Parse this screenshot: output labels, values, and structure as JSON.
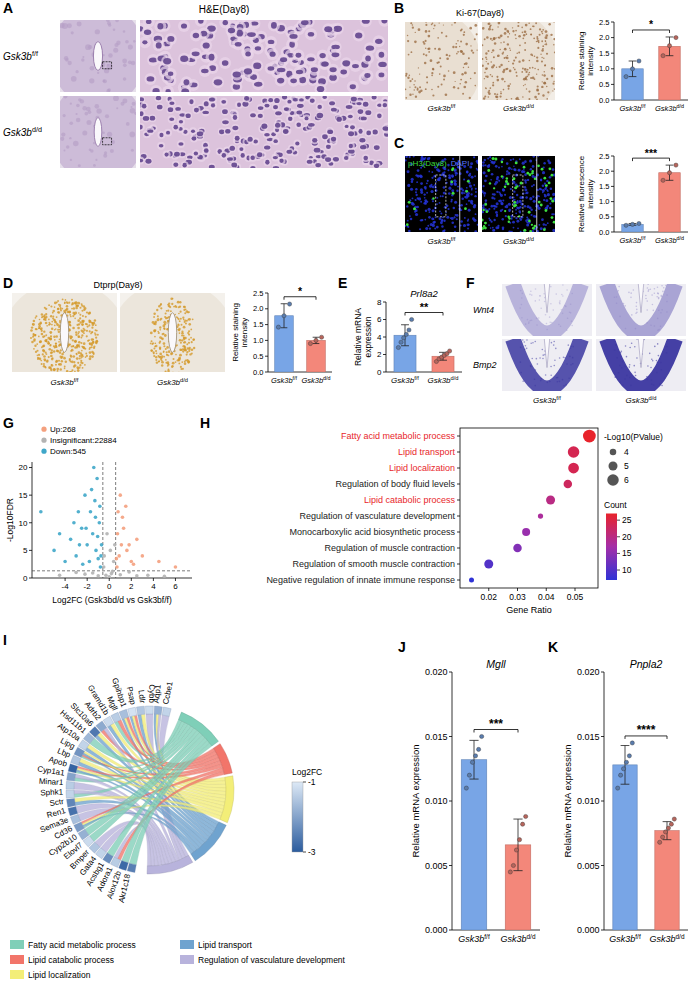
{
  "image_panels": [
    {
      "panel": "A",
      "title": "H&E(Day8)",
      "labels": [
        "Gsk3bf/f",
        "Gsk3bd/d"
      ]
    },
    {
      "panel": "B",
      "title": "Ki-67(Day8)",
      "labels": [
        "Gsk3bf/f",
        "Gsk3bd/d"
      ]
    },
    {
      "panel": "C",
      "title": [
        "pH3(Day8)",
        "DAPI"
      ],
      "title_colors": [
        "#3ddc3d",
        "#5a74ff"
      ],
      "labels": [
        "Gsk3bf/f",
        "Gsk3bd/d"
      ]
    },
    {
      "panel": "D",
      "title": "Dtprp(Day8)",
      "labels": [
        "Gsk3bf/f",
        "Gsk3bd/d"
      ]
    },
    {
      "panel": "F",
      "row_labels": [
        "Wnt4",
        "Bmp2"
      ],
      "labels": [
        "Gsk3bf/f",
        "Gsk3bd/d"
      ]
    }
  ],
  "chart_data": [
    {
      "type": "bar",
      "categories": [
        "Gsk3bf/f",
        "Gsk3bd/d"
      ],
      "colors": [
        "#78a5e6",
        "#f3877a"
      ],
      "values": [
        1.0,
        1.72
      ],
      "errors": [
        0.25,
        0.3
      ],
      "points": [
        [
          0.75,
          1.0,
          1.25
        ],
        [
          1.42,
          1.74,
          2.0
        ]
      ],
      "ylabel": "Relative staining intensity",
      "ylim": [
        0,
        2.5
      ],
      "yticks": [
        {
          "value": 0,
          "label": "0.0"
        },
        0.5,
        {
          "value": 1,
          "label": "1.0"
        },
        1.5,
        {
          "value": 2,
          "label": "2.0"
        },
        2.5
      ],
      "annotation": "*"
    },
    {
      "type": "bar",
      "categories": [
        "Gsk3bf/f",
        "Gsk3bd/d"
      ],
      "colors": [
        "#78a5e6",
        "#f3877a"
      ],
      "values": [
        0.25,
        1.95
      ],
      "errors": [
        0.03,
        0.25
      ],
      "points": [
        [
          0.22,
          0.25,
          0.28
        ],
        [
          1.7,
          1.95,
          2.2
        ]
      ],
      "ylabel": "Relative fluorescence intensity",
      "ylim": [
        0,
        2.5
      ],
      "yticks": [
        {
          "value": 0,
          "label": "0.0"
        },
        0.5,
        {
          "value": 1,
          "label": "1.0"
        },
        1.5,
        {
          "value": 2,
          "label": "2.0"
        },
        2.5
      ],
      "annotation": "***"
    },
    {
      "type": "bar",
      "categories": [
        "Gsk3bf/f",
        "Gsk3bd/d"
      ],
      "colors": [
        "#78a5e6",
        "#f3877a"
      ],
      "values": [
        1.78,
        1.0
      ],
      "errors": [
        0.38,
        0.1
      ],
      "points": [
        [
          1.42,
          1.78,
          2.15
        ],
        [
          0.9,
          1.0,
          1.1
        ]
      ],
      "ylabel": "Relative staining intensity",
      "ylim": [
        0,
        2.5
      ],
      "yticks": [
        {
          "value": 0,
          "label": "0.0"
        },
        0.5,
        {
          "value": 1,
          "label": "1.0"
        },
        1.5,
        {
          "value": 2,
          "label": "2.0"
        },
        2.5
      ],
      "annotation": "*"
    },
    {
      "type": "bar",
      "panel": "E",
      "title": "Prl8a2",
      "categories": [
        "Gsk3bf/f",
        "Gsk3bd/d"
      ],
      "colors": [
        "#78a5e6",
        "#f3877a"
      ],
      "values": [
        4.2,
        1.8
      ],
      "errors": [
        1.2,
        0.45
      ],
      "points": [
        [
          2.8,
          3.4,
          3.9,
          4.3,
          4.8,
          6.0
        ],
        [
          1.2,
          1.5,
          1.7,
          1.9,
          2.1,
          2.4
        ]
      ],
      "ylabel": "Relative mRNA expression",
      "ylim": [
        0,
        8
      ],
      "yticks": [
        0,
        2,
        4,
        6,
        8
      ],
      "annotation": "**"
    },
    {
      "type": "scatter",
      "panel": "G",
      "legend": "top",
      "xlabel": "Log2FC (Gsk3bd/d vs Gsk3bf/f)",
      "ylabel": "-Log10FDR",
      "xlim": [
        -7,
        7.5
      ],
      "ylim": [
        0,
        21
      ],
      "xticks": [
        -4,
        -2,
        0,
        2,
        4,
        6
      ],
      "yticks": [
        0,
        5,
        10,
        15,
        20
      ],
      "reference_lines": {
        "x": [
          -0.58,
          0.58
        ],
        "y": [
          1.3
        ]
      },
      "series": [
        {
          "name": "Up:268",
          "color": "#f4a07e",
          "x": [
            0.7,
            0.9,
            1.1,
            1.3,
            1.6,
            2.0,
            2.5,
            0.8,
            1.0,
            1.2,
            3.0,
            4.5,
            6.0,
            1.5,
            0.75,
            1.8,
            0.65,
            2.2
          ],
          "values": [
            2,
            4,
            6,
            9,
            5,
            3,
            7,
            12,
            15,
            11,
            4,
            3,
            2,
            13,
            8,
            6,
            3.5,
            2.5
          ]
        },
        {
          "name": "Insignificant:22884",
          "color": "#b3b3b3",
          "x": [
            -0.3,
            0.2,
            -0.5,
            0.4,
            0,
            1.0,
            -1.5,
            2.5,
            -2.2,
            3.5,
            -3,
            0.1,
            -0.2,
            0.3,
            5,
            -4.5,
            -0.45,
            0.5,
            -1.0,
            1.8
          ],
          "values": [
            0.5,
            0.8,
            2,
            3,
            0.2,
            0.6,
            0.9,
            0.4,
            0.7,
            0.5,
            1,
            5,
            8,
            1.2,
            0.3,
            0.5,
            4,
            6,
            0.4,
            1.1
          ]
        },
        {
          "name": "Down:545",
          "color": "#3fa7c9",
          "x": [
            -0.8,
            -1.0,
            -1.2,
            -1.5,
            -1.7,
            -2.0,
            -2.2,
            -2.5,
            -3.0,
            -3.5,
            -1.1,
            -1.4,
            -0.9,
            -2.8,
            -4.0,
            -5.0,
            -6.2,
            -1.3,
            -0.7,
            -1.8,
            -2.4,
            -3.2,
            -1.6,
            -0.85,
            -2.1,
            -1.05,
            -0.75,
            -1.25,
            -4.5,
            -2.7
          ],
          "values": [
            2,
            3.5,
            5,
            8,
            12,
            6,
            15,
            9,
            4,
            7,
            18,
            20,
            10,
            12,
            3,
            5,
            12,
            14,
            6,
            3,
            2.5,
            10,
            16,
            13,
            9,
            7.5,
            4,
            11,
            8,
            6
          ]
        }
      ]
    },
    {
      "type": "dot",
      "panel": "H",
      "categories": [
        "Fatty acid metabolic process",
        "Lipid transport",
        "Lipid localization",
        "Regulation of body fluid levels",
        "Lipid catabolic process",
        "Regulation of vasculature development",
        "Monocarboxylic acid biosynthetic process",
        "Regulation of muscle contraction",
        "Regulation of smooth muscle contraction",
        "Negative regulation of innate immune response"
      ],
      "x": [
        0.055,
        0.0495,
        0.0495,
        0.0475,
        0.0415,
        0.038,
        0.033,
        0.03,
        0.02,
        0.014
      ],
      "count": [
        27,
        24,
        24,
        23,
        20,
        18,
        16,
        14,
        10,
        7
      ],
      "pvalue": [
        6.5,
        6.0,
        5.7,
        4.8,
        5.0,
        3.5,
        4.6,
        4.8,
        5.0,
        3.4
      ],
      "label_colors": [
        "#e8262b",
        "#e8262b",
        "#e8262b",
        "#222222",
        "#e8262b",
        "#222222",
        "#222222",
        "#222222",
        "#222222",
        "#222222"
      ],
      "xlabel": "Gene Ratio",
      "xlim": [
        0.01,
        0.058
      ],
      "xticks": [
        0.02,
        0.03,
        0.04,
        0.05
      ],
      "size_legend": {
        "title": "-Log10(PValue)",
        "ticks": [
          4,
          5,
          6
        ],
        "lim": [
          3,
          7
        ]
      },
      "color_legend": {
        "title": "Count",
        "ticks": [
          10,
          15,
          20,
          25
        ],
        "lim": [
          7,
          27
        ]
      }
    },
    {
      "type": "chord",
      "panel": "I",
      "legend": "bottom",
      "genes": [
        "Ccbe1",
        "Aqp1",
        "Cybb",
        "Ldlr",
        "Psap",
        "Gpihbp1",
        "Mgll",
        "Gramd1b",
        "Adrb2",
        "Slc10a6",
        "Hsd11b1",
        "Atp10a",
        "Lipg",
        "Lbp",
        "Apob",
        "Cyp1a1",
        "Minar1",
        "Sphk1",
        "Sctr",
        "Ren1",
        "Sema3e",
        "Cd36",
        "Cyp2b10",
        "Elovl7",
        "Bmper",
        "Gata4",
        "Acsbg1",
        "Adora1",
        "Alox12b",
        "Akr1c18"
      ],
      "log2fc": [
        -1.3,
        -1.8,
        -1.2,
        -1.5,
        -1.1,
        -1.6,
        -1.4,
        -1.2,
        -1.9,
        -2.6,
        -1.7,
        -1.3,
        -2.2,
        -1.5,
        -2.9,
        -2.0,
        -1.4,
        -1.3,
        -2.4,
        -2.7,
        -1.6,
        -2.1,
        -1.8,
        -1.2,
        -1.5,
        -1.3,
        -2.3,
        -1.4,
        -2.8,
        -2.5
      ],
      "gene_terms": [
        [
          4
        ],
        [
          3,
          2,
          4
        ],
        [
          4
        ],
        [
          3,
          2
        ],
        [
          3,
          2,
          1
        ],
        [
          3,
          2,
          1
        ],
        [
          0,
          1
        ],
        [
          3,
          2
        ],
        [
          1,
          4
        ],
        [
          3,
          2
        ],
        [
          0
        ],
        [
          3,
          2
        ],
        [
          0,
          1,
          3,
          2
        ],
        [
          3,
          2
        ],
        [
          0,
          3,
          2,
          1
        ],
        [
          0,
          4
        ],
        [
          4
        ],
        [
          0,
          4
        ],
        [
          3,
          2
        ],
        [
          4
        ],
        [
          4
        ],
        [
          0,
          3,
          2,
          1
        ],
        [
          0
        ],
        [
          0
        ],
        [
          4
        ],
        [
          4
        ],
        [
          0
        ],
        [
          1,
          4
        ],
        [
          0
        ],
        [
          0
        ]
      ],
      "terms": [
        "Fatty acid metabolic process",
        "Lipid catabolic process",
        "Lipid localization",
        "Lipid transport",
        "Regulation of vasculature development"
      ],
      "colors": [
        "#7fcfb8",
        "#f2756a",
        "#f3ee78",
        "#6fa3cf",
        "#b8b3dc"
      ],
      "colorbar": {
        "title": "Log2FC",
        "lim": [
          -3,
          -1
        ],
        "ticks": [
          -1,
          -3
        ]
      }
    },
    {
      "type": "bar",
      "panel": "J",
      "title": "Mgll",
      "categories": [
        "Gsk3bf/f",
        "Gsk3bd/d"
      ],
      "colors": [
        "#78a5e6",
        "#f3877a"
      ],
      "values": [
        0.0132,
        0.0066
      ],
      "errors": [
        0.0015,
        0.002
      ],
      "points": [
        [
          0.011,
          0.012,
          0.013,
          0.0135,
          0.014,
          0.015
        ],
        [
          0.0045,
          0.005,
          0.0062,
          0.007,
          0.0082,
          0.0088
        ]
      ],
      "ylabel": "Relative mRNA expression",
      "ylim": [
        0,
        0.02
      ],
      "yticks": [
        {
          "value": 0,
          "label": "0.000"
        },
        0.005,
        {
          "value": 0.01,
          "label": "0.010"
        },
        0.015,
        {
          "value": 0.02,
          "label": "0.020"
        }
      ],
      "annotation": "***"
    },
    {
      "type": "bar",
      "panel": "K",
      "title": "Pnpla2",
      "categories": [
        "Gsk3bf/f",
        "Gsk3bd/d"
      ],
      "colors": [
        "#78a5e6",
        "#f3877a"
      ],
      "values": [
        0.0128,
        0.0077
      ],
      "errors": [
        0.0015,
        0.0007
      ],
      "points": [
        [
          0.011,
          0.012,
          0.0125,
          0.013,
          0.0135,
          0.0145
        ],
        [
          0.0068,
          0.0072,
          0.0076,
          0.0079,
          0.0082,
          0.0086
        ]
      ],
      "ylabel": "Relative mRNA expression",
      "ylim": [
        0,
        0.02
      ],
      "yticks": [
        {
          "value": 0,
          "label": "0.000"
        },
        0.005,
        {
          "value": 0.01,
          "label": "0.010"
        },
        0.015,
        {
          "value": 0.02,
          "label": "0.020"
        }
      ],
      "annotation": "****"
    }
  ]
}
